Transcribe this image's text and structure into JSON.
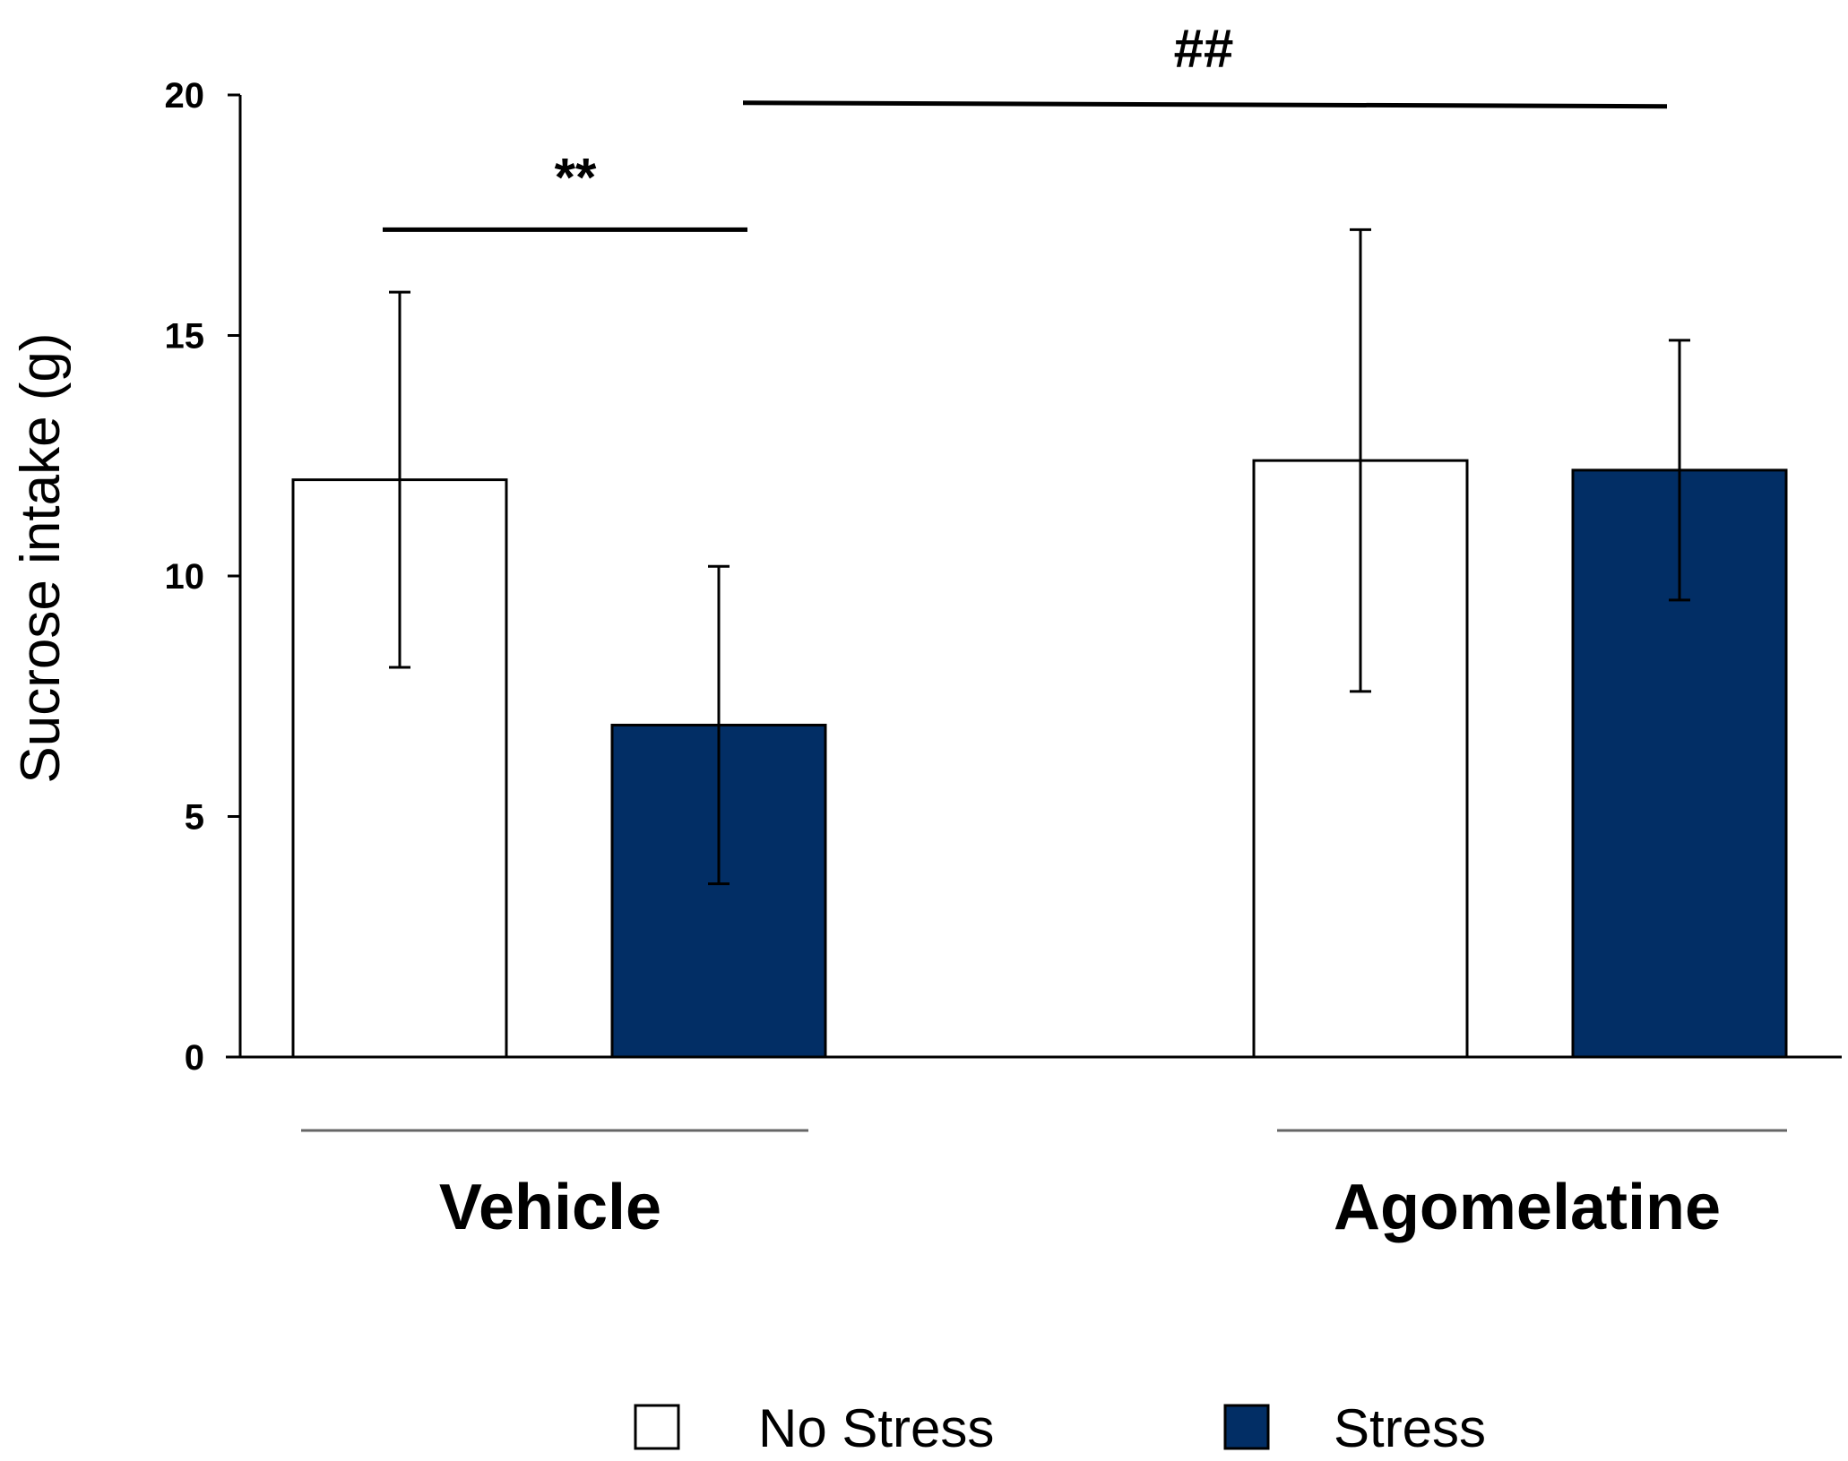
{
  "chart_data": {
    "type": "bar",
    "title": "",
    "xlabel": "",
    "ylabel": "Sucrose intake (g)",
    "ylim": [
      0,
      20
    ],
    "yticks": [
      0,
      5,
      10,
      15,
      20
    ],
    "grid": false,
    "categories": [
      "Vehicle",
      "Agomelatine"
    ],
    "series": [
      {
        "name": "No Stress",
        "color": "#ffffff",
        "values": [
          12.0,
          12.4
        ],
        "error": [
          3.9,
          4.8
        ]
      },
      {
        "name": "Stress",
        "color": "#022e65",
        "values": [
          6.9,
          12.2
        ],
        "error": [
          3.3,
          2.7
        ]
      }
    ],
    "annotations": [
      {
        "text": "**",
        "spans": "Vehicle No Stress vs Vehicle Stress",
        "y": 17.2
      },
      {
        "text": "##",
        "spans": "Vehicle Stress vs Agomelatine Stress",
        "y": 19.8
      }
    ],
    "legend_position": "bottom"
  }
}
